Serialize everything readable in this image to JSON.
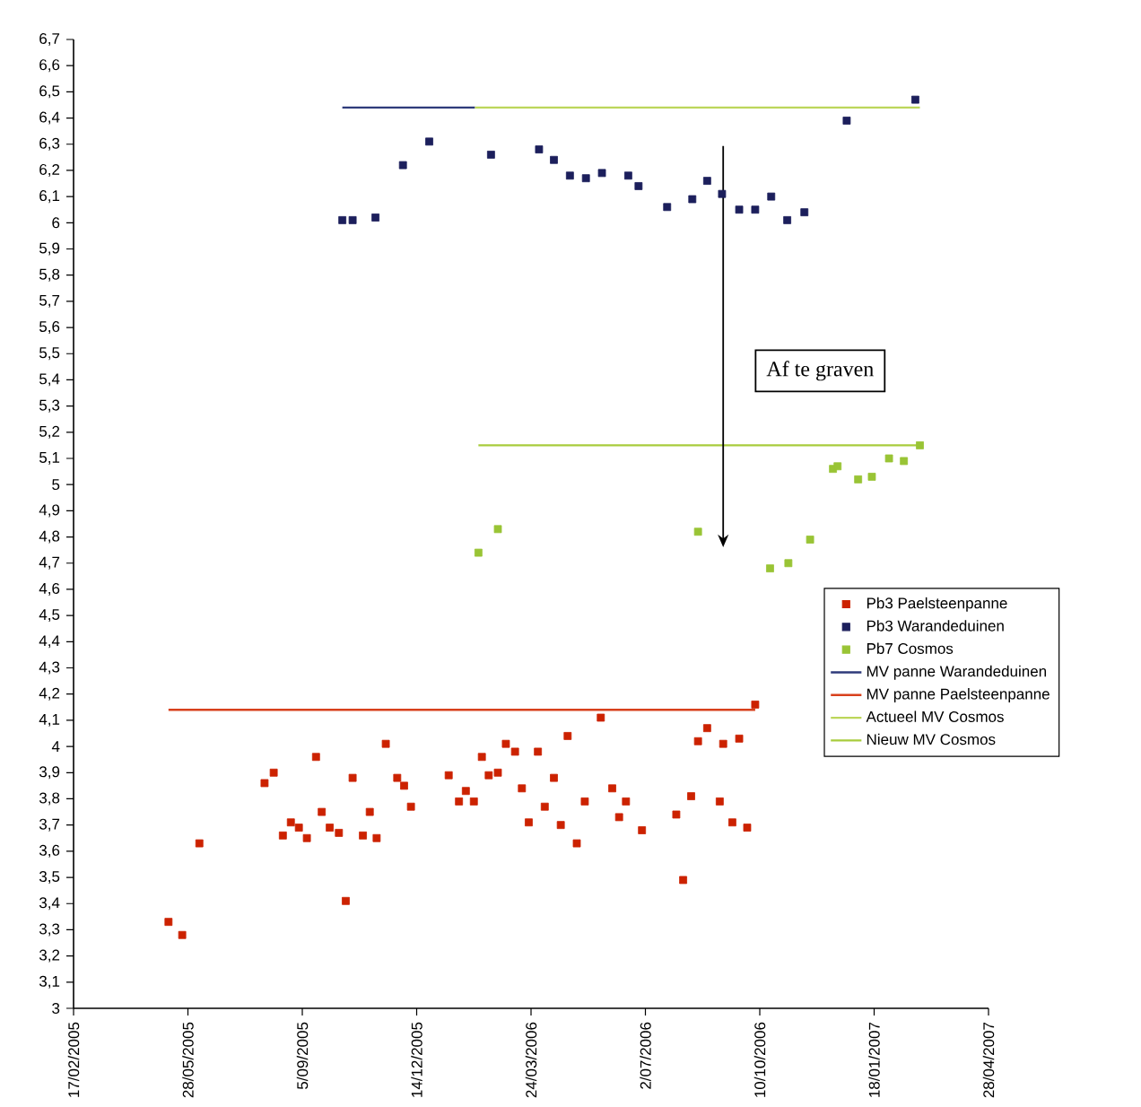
{
  "chart_data": {
    "type": "scatter",
    "xlim": [
      "2005-02-17",
      "2007-04-28"
    ],
    "xticks": [
      {
        "value": "2005-02-17",
        "label": "17/02/2005"
      },
      {
        "value": "2005-05-28",
        "label": "28/05/2005"
      },
      {
        "value": "2005-09-05",
        "label": "5/09/2005"
      },
      {
        "value": "2005-12-14",
        "label": "14/12/2005"
      },
      {
        "value": "2006-03-24",
        "label": "24/03/2006"
      },
      {
        "value": "2006-07-02",
        "label": "2/07/2006"
      },
      {
        "value": "2006-10-10",
        "label": "10/10/2006"
      },
      {
        "value": "2007-01-18",
        "label": "18/01/2007"
      },
      {
        "value": "2007-04-28",
        "label": "28/04/2007"
      }
    ],
    "ylim": [
      3,
      6.7
    ],
    "yticks": [
      3,
      {
        "value": 3.1,
        "label": "3,1"
      },
      {
        "value": 3.2,
        "label": "3,2"
      },
      {
        "value": 3.3,
        "label": "3,3"
      },
      {
        "value": 3.4,
        "label": "3,4"
      },
      {
        "value": 3.5,
        "label": "3,5"
      },
      {
        "value": 3.6,
        "label": "3,6"
      },
      {
        "value": 3.7,
        "label": "3,7"
      },
      {
        "value": 3.8,
        "label": "3,8"
      },
      {
        "value": 3.9,
        "label": "3,9"
      },
      4,
      {
        "value": 4.1,
        "label": "4,1"
      },
      {
        "value": 4.2,
        "label": "4,2"
      },
      {
        "value": 4.3,
        "label": "4,3"
      },
      {
        "value": 4.4,
        "label": "4,4"
      },
      {
        "value": 4.5,
        "label": "4,5"
      },
      {
        "value": 4.6,
        "label": "4,6"
      },
      {
        "value": 4.7,
        "label": "4,7"
      },
      {
        "value": 4.8,
        "label": "4,8"
      },
      {
        "value": 4.9,
        "label": "4,9"
      },
      5,
      {
        "value": 5.1,
        "label": "5,1"
      },
      {
        "value": 5.2,
        "label": "5,2"
      },
      {
        "value": 5.3,
        "label": "5,3"
      },
      {
        "value": 5.4,
        "label": "5,4"
      },
      {
        "value": 5.5,
        "label": "5,5"
      },
      {
        "value": 5.6,
        "label": "5,6"
      },
      {
        "value": 5.7,
        "label": "5,7"
      },
      {
        "value": 5.8,
        "label": "5,8"
      },
      {
        "value": 5.9,
        "label": "5,9"
      },
      6,
      {
        "value": 6.1,
        "label": "6,1"
      },
      {
        "value": 6.2,
        "label": "6,2"
      },
      {
        "value": 6.3,
        "label": "6,3"
      },
      {
        "value": 6.4,
        "label": "6,4"
      },
      {
        "value": 6.5,
        "label": "6,5"
      },
      {
        "value": 6.6,
        "label": "6,6"
      },
      {
        "value": 6.7,
        "label": "6,7"
      }
    ],
    "legend": "right",
    "series": [
      {
        "name": "Pb3 Paelsteenpanne",
        "color": "#cc2200",
        "marker": "square",
        "x": [
          "2005-05-11",
          "2005-05-23",
          "2005-06-07",
          "2005-08-03",
          "2005-08-11",
          "2005-08-19",
          "2005-08-26",
          "2005-09-02",
          "2005-09-09",
          "2005-09-17",
          "2005-09-22",
          "2005-09-29",
          "2005-10-07",
          "2005-10-13",
          "2005-10-19",
          "2005-10-28",
          "2005-11-03",
          "2005-11-09",
          "2005-11-17",
          "2005-11-27",
          "2005-12-03",
          "2005-12-09",
          "2006-01-11",
          "2006-01-20",
          "2006-01-26",
          "2006-02-02",
          "2006-02-09",
          "2006-02-15",
          "2006-02-23",
          "2006-03-02",
          "2006-03-10",
          "2006-03-16",
          "2006-03-22",
          "2006-03-30",
          "2006-04-05",
          "2006-04-13",
          "2006-04-19",
          "2006-04-25",
          "2006-05-03",
          "2006-05-10",
          "2006-05-24",
          "2006-06-03",
          "2006-06-09",
          "2006-06-15",
          "2006-06-29",
          "2006-07-29",
          "2006-08-04",
          "2006-08-11",
          "2006-08-17",
          "2006-08-25",
          "2006-09-05",
          "2006-09-08",
          "2006-09-16",
          "2006-09-22",
          "2006-09-29",
          "2006-10-06"
        ],
        "values": [
          3.33,
          3.28,
          3.63,
          3.86,
          3.9,
          3.66,
          3.71,
          3.69,
          3.65,
          3.96,
          3.75,
          3.69,
          3.67,
          3.41,
          3.88,
          3.66,
          3.75,
          3.65,
          4.01,
          3.88,
          3.85,
          3.77,
          3.89,
          3.79,
          3.83,
          3.79,
          3.96,
          3.89,
          3.9,
          4.01,
          3.98,
          3.84,
          3.71,
          3.98,
          3.77,
          3.88,
          3.7,
          4.04,
          3.63,
          3.79,
          4.11,
          3.84,
          3.73,
          3.79,
          3.68,
          3.74,
          3.49,
          3.81,
          4.02,
          4.07,
          3.79,
          4.01,
          3.71,
          4.03,
          3.69,
          4.16
        ]
      },
      {
        "name": "Pb3 Warandeduinen",
        "color": "#1c1f5c",
        "marker": "square",
        "x": [
          "2005-10-10",
          "2005-10-19",
          "2005-11-08",
          "2005-12-02",
          "2005-12-25",
          "2006-02-17",
          "2006-03-31",
          "2006-04-13",
          "2006-04-27",
          "2006-05-11",
          "2006-05-25",
          "2006-06-17",
          "2006-06-26",
          "2006-07-21",
          "2006-08-12",
          "2006-08-25",
          "2006-09-07",
          "2006-09-22",
          "2006-10-06",
          "2006-10-20",
          "2006-11-03",
          "2006-11-18",
          "2006-12-25",
          "2007-02-23"
        ],
        "values": [
          6.01,
          6.01,
          6.02,
          6.22,
          6.31,
          6.26,
          6.28,
          6.24,
          6.18,
          6.17,
          6.19,
          6.18,
          6.14,
          6.06,
          6.09,
          6.16,
          6.11,
          6.05,
          6.05,
          6.1,
          6.01,
          6.04,
          6.39,
          6.47
        ]
      },
      {
        "name": "Pb7 Cosmos",
        "color": "#99c435",
        "marker": "square",
        "x": [
          "2006-02-06",
          "2006-02-23",
          "2006-08-17",
          "2006-10-19",
          "2006-11-04",
          "2006-11-23",
          "2006-12-13",
          "2006-12-17",
          "2007-01-04",
          "2007-01-16",
          "2007-01-31",
          "2007-02-13",
          "2007-02-27"
        ],
        "values": [
          4.74,
          4.83,
          4.82,
          4.68,
          4.7,
          4.79,
          5.06,
          5.07,
          5.02,
          5.03,
          5.1,
          5.09,
          5.15
        ]
      },
      {
        "name": "MV panne Warandeduinen",
        "type": "line",
        "color": "#2e3a7a",
        "x": [
          "2005-10-10",
          "2006-02-03"
        ],
        "values": [
          6.44,
          6.44
        ]
      },
      {
        "name": "MV panne Paelsteenpanne",
        "type": "line",
        "color": "#d8401c",
        "x": [
          "2005-05-11",
          "2006-10-06"
        ],
        "values": [
          4.14,
          4.14
        ]
      },
      {
        "name": "Actueel MV Cosmos",
        "type": "line",
        "color": "#bcd65a",
        "x": [
          "2006-02-03",
          "2007-02-27"
        ],
        "values": [
          6.44,
          6.44
        ]
      },
      {
        "name": "Nieuw MV Cosmos",
        "type": "line",
        "color": "#a8cc3c",
        "x": [
          "2006-02-06",
          "2007-02-27"
        ],
        "values": [
          5.15,
          5.15
        ]
      }
    ],
    "annotations": [
      "Af te graven"
    ]
  }
}
